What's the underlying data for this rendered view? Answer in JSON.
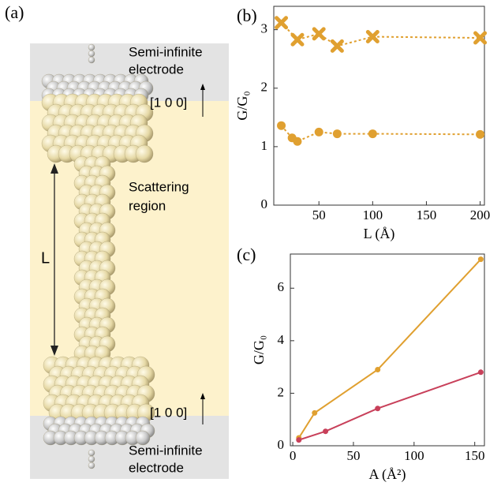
{
  "panel_a": {
    "label": "(a)",
    "top_electrode": [
      "Semi-infinite",
      "electrode"
    ],
    "top_direction": "[1 0 0]",
    "region": [
      "Scattering",
      "region"
    ],
    "length": "L",
    "bottom_direction": "[1 0 0]",
    "bottom_electrode": [
      "Semi-infinite",
      "electrode"
    ]
  },
  "chart_data": [
    {
      "type": "line",
      "label": "(b)",
      "x_label": "L (Å)",
      "y_label": "G/G₀",
      "x": [
        15,
        25,
        30,
        50,
        67,
        100,
        200
      ],
      "series": [
        {
          "color": "#e0a030",
          "marker": "x",
          "dash": true,
          "values": [
            3.12,
            null,
            2.83,
            2.93,
            2.72,
            2.88,
            2.86
          ]
        },
        {
          "color": "#e0a030",
          "marker": "circle",
          "dash": true,
          "values": [
            1.36,
            1.15,
            1.09,
            1.25,
            1.22,
            1.22,
            1.21
          ]
        }
      ],
      "xlim": [
        8,
        204
      ],
      "xticks": [
        50,
        100,
        150,
        200
      ],
      "ylim": [
        0,
        3.4
      ],
      "yticks": [
        0,
        1,
        2,
        3
      ]
    },
    {
      "type": "line",
      "label": "(c)",
      "x_label": "A (Å²)",
      "y_label": "G/G₀",
      "series": [
        {
          "color": "#e0a030",
          "marker": "circle",
          "dash": false,
          "x": [
            5,
            18,
            70,
            155
          ],
          "values": [
            0.3,
            1.25,
            2.9,
            7.1
          ]
        },
        {
          "color": "#c8405a",
          "marker": "circle",
          "dash": false,
          "x": [
            5,
            27,
            70,
            155
          ],
          "values": [
            0.22,
            0.55,
            1.42,
            2.8
          ]
        }
      ],
      "xlim": [
        -2,
        158
      ],
      "xticks": [
        0,
        50,
        100,
        150
      ],
      "ylim": [
        0,
        7.3
      ],
      "yticks": [
        0,
        2,
        4,
        6
      ]
    }
  ]
}
